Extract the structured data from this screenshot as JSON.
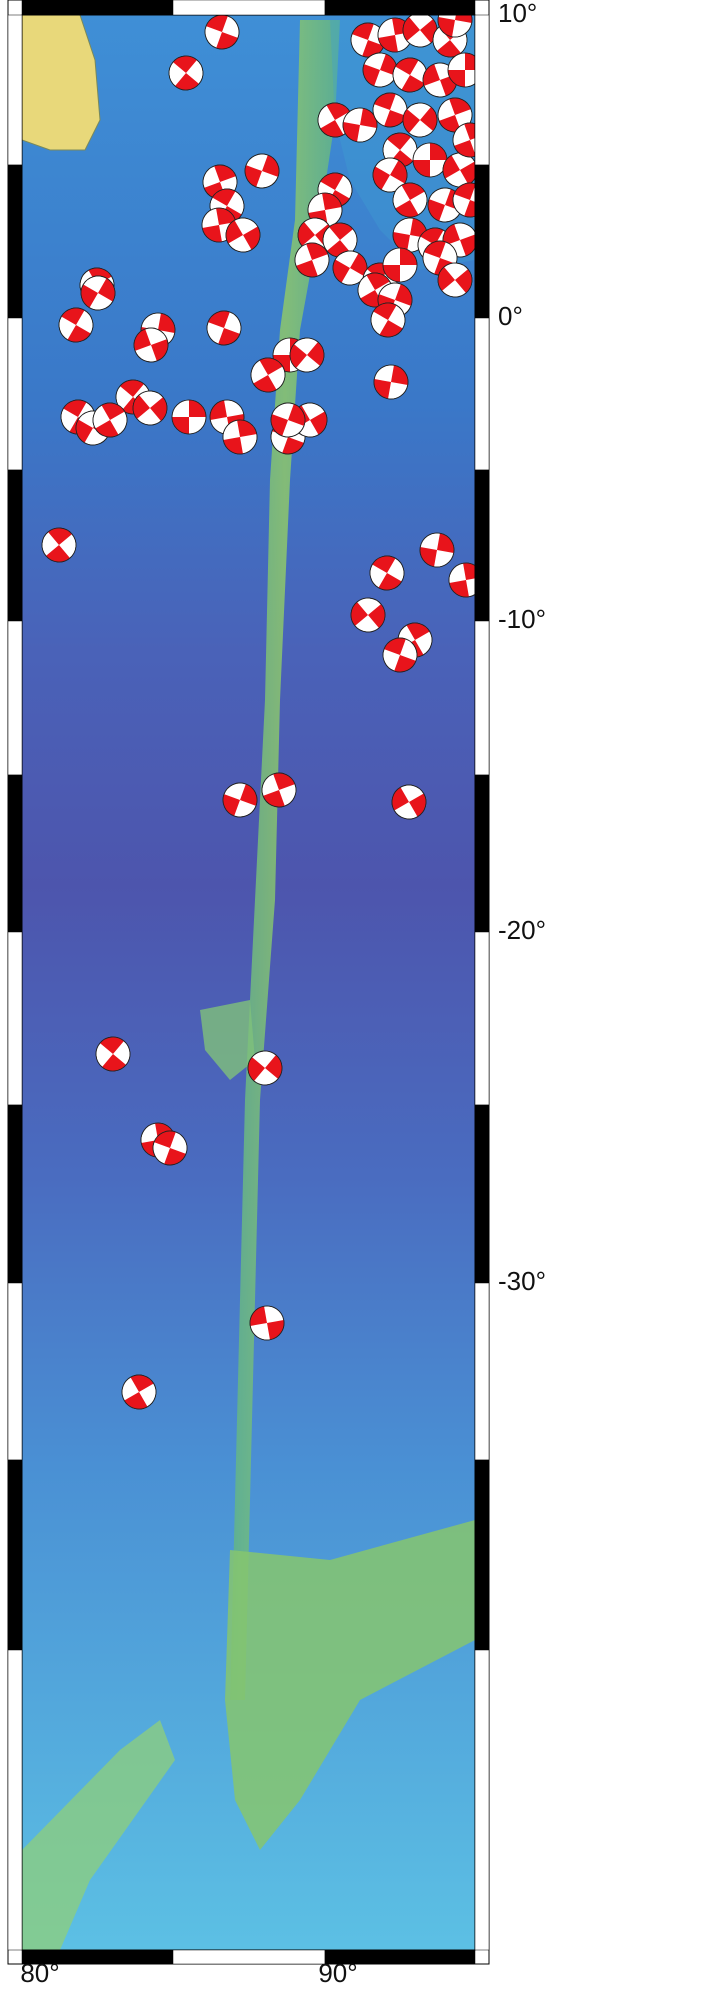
{
  "map": {
    "lat_labels": [
      "10°",
      "0°",
      "-10°",
      "-20°",
      "-30°"
    ],
    "lon_labels": [
      "80°",
      "90°"
    ]
  }
}
